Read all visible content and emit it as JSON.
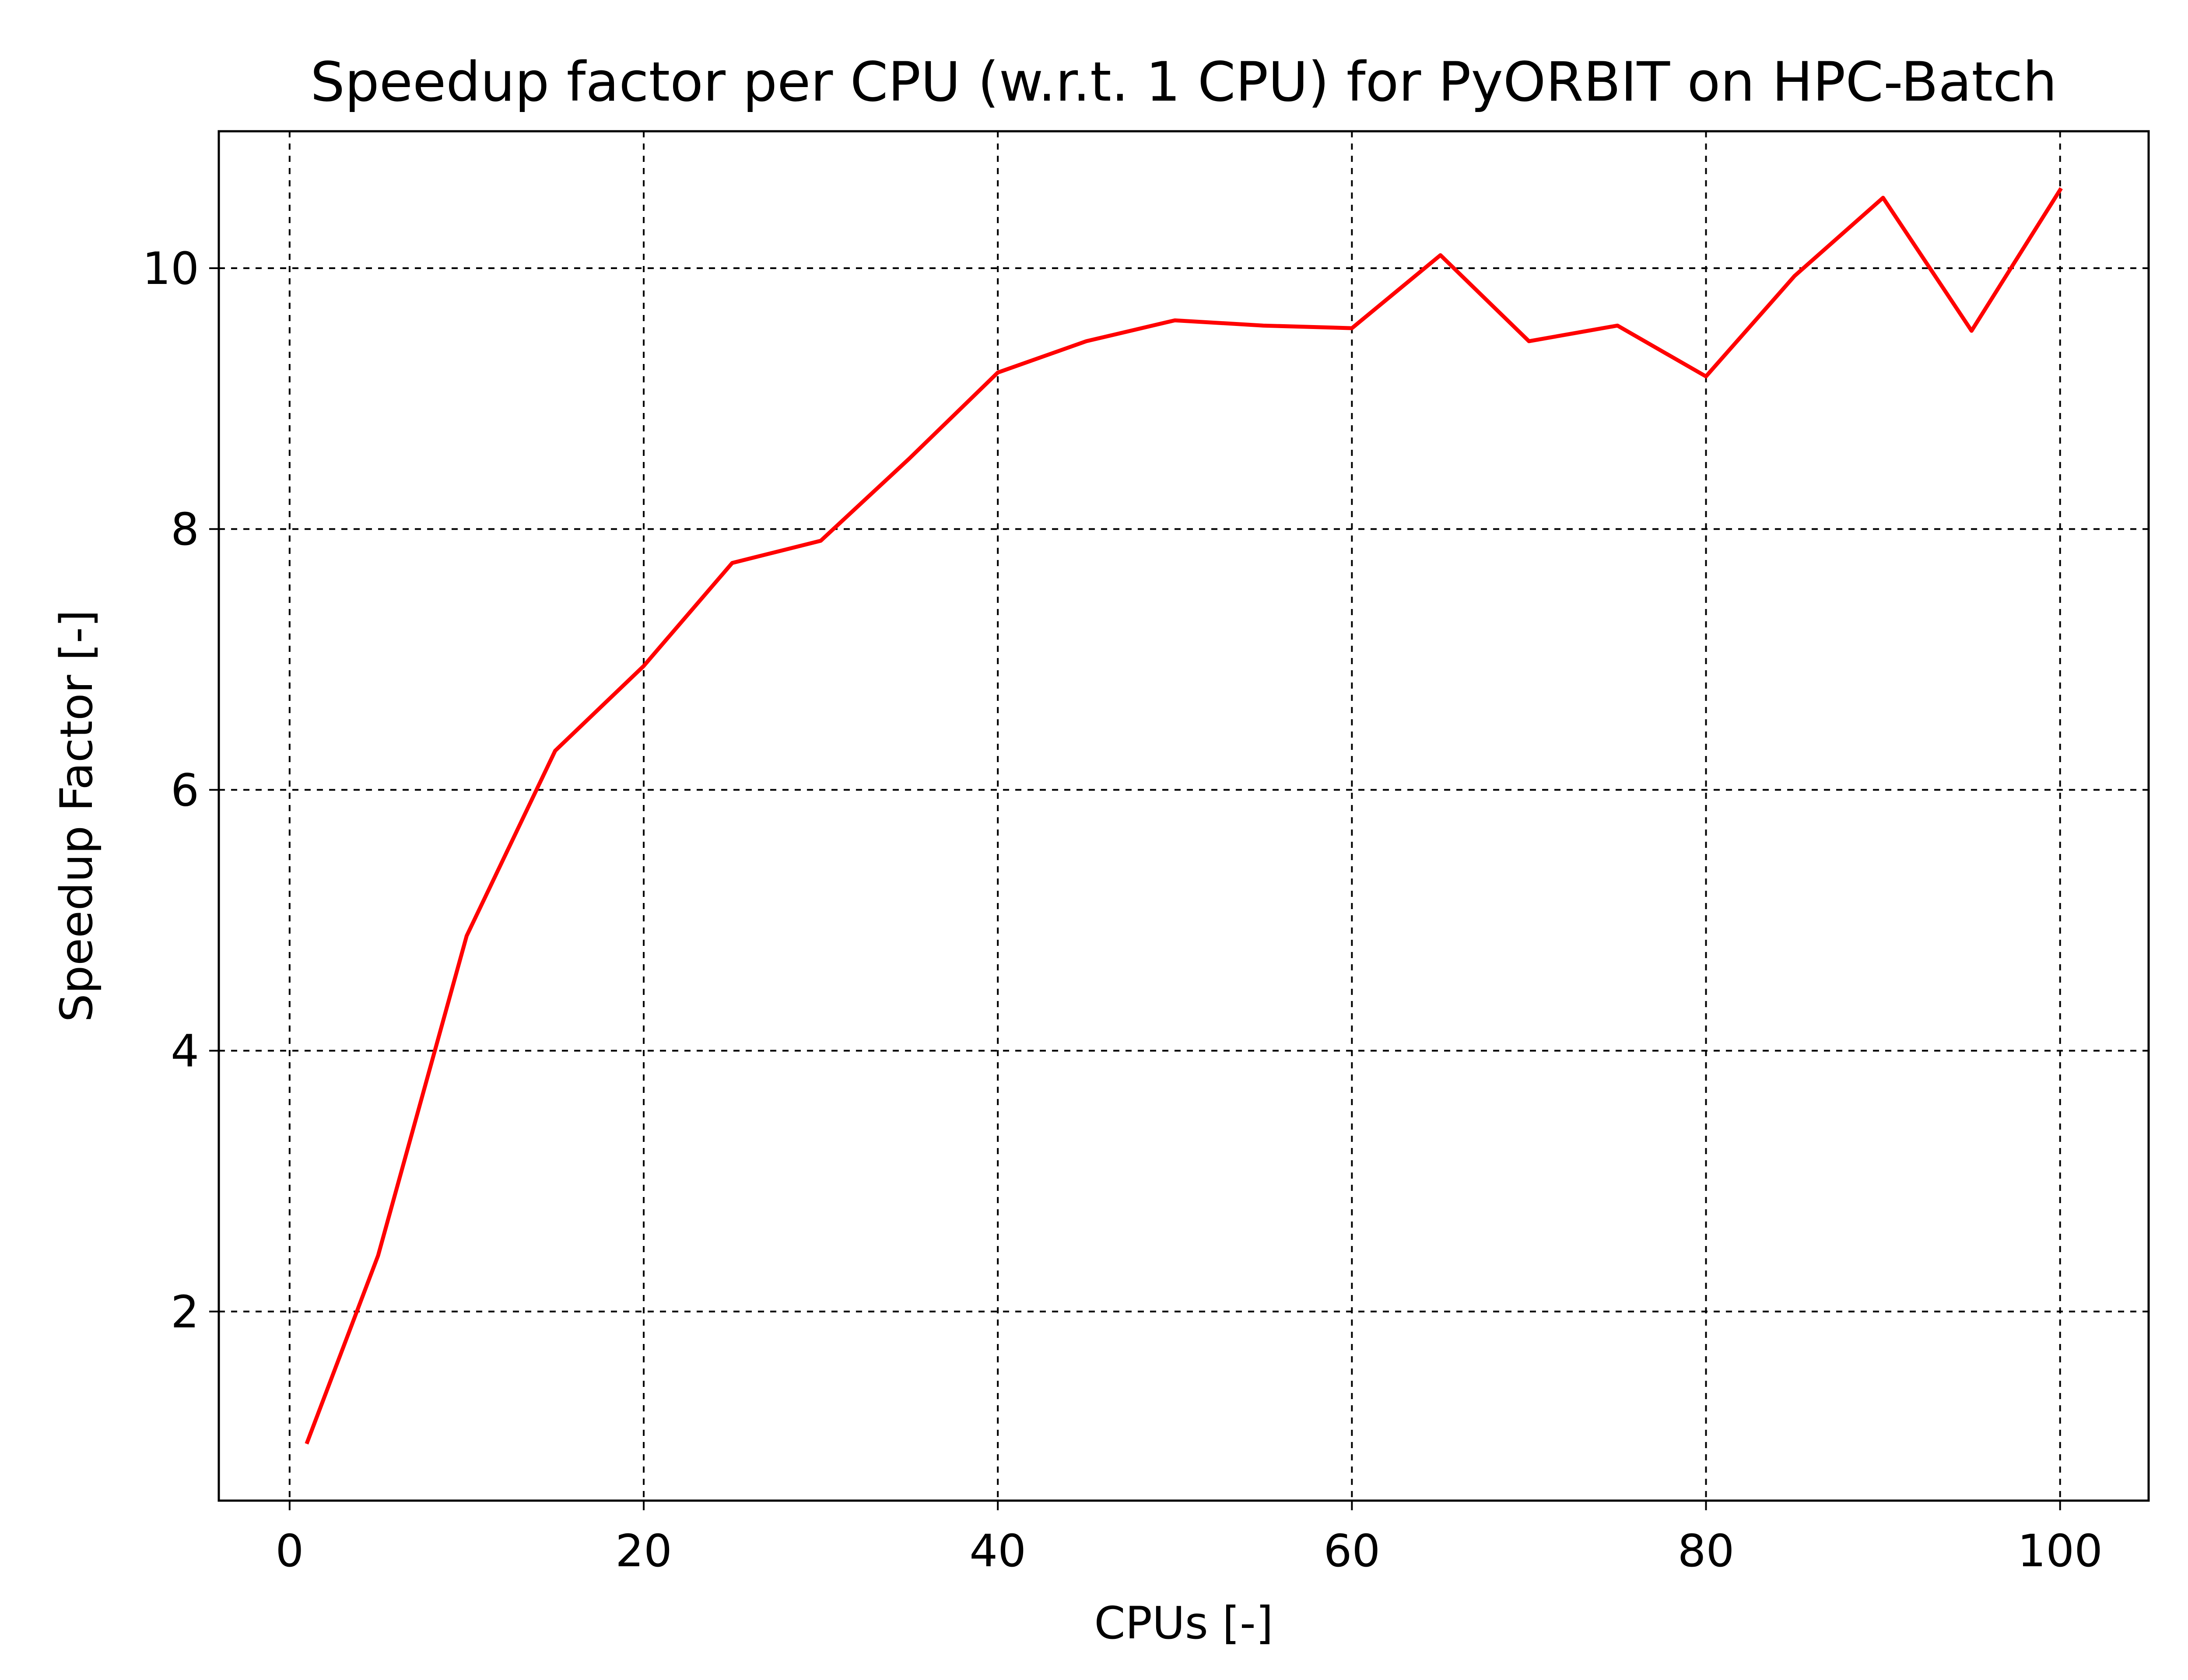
{
  "chart_data": {
    "type": "line",
    "title": "Speedup factor per CPU (w.r.t. 1 CPU) for PyORBIT on HPC-Batch",
    "xlabel": "CPUs [-]",
    "ylabel": "Speedup Factor [-]",
    "xlim": [
      -4,
      105
    ],
    "ylim": [
      0.55,
      11.05
    ],
    "xticks": [
      0,
      20,
      40,
      60,
      80,
      100
    ],
    "yticks": [
      2,
      4,
      6,
      8,
      10
    ],
    "xtick_labels": [
      "0",
      "20",
      "40",
      "60",
      "80",
      "100"
    ],
    "ytick_labels": [
      "2",
      "4",
      "6",
      "8",
      "10"
    ],
    "grid": true,
    "grid_style": "dashed",
    "series": [
      {
        "color": "#ff0000",
        "x": [
          1,
          5,
          10,
          15,
          20,
          25,
          30,
          35,
          40,
          45,
          50,
          55,
          60,
          65,
          70,
          75,
          80,
          85,
          90,
          95,
          100
        ],
        "y": [
          1.0,
          2.43,
          4.88,
          6.3,
          6.95,
          7.74,
          7.91,
          8.54,
          9.2,
          9.44,
          9.6,
          9.56,
          9.54,
          10.1,
          9.44,
          9.56,
          9.17,
          9.94,
          10.54,
          9.52,
          10.6
        ]
      }
    ]
  }
}
